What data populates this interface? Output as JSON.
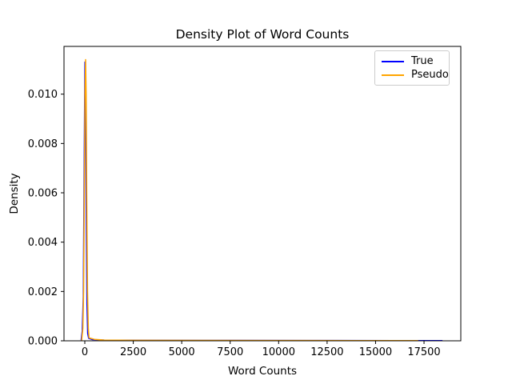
{
  "chart_data": {
    "type": "line",
    "title": "Density Plot of Word Counts",
    "xlabel": "Word Counts",
    "ylabel": "Density",
    "xlim": [
      -1073,
      19397
    ],
    "ylim": [
      0,
      0.011936
    ],
    "x_ticks": [
      0,
      2500,
      5000,
      7500,
      10000,
      12500,
      15000,
      17500
    ],
    "x_tick_labels": [
      "0",
      "2500",
      "5000",
      "7500",
      "10000",
      "12500",
      "15000",
      "17500"
    ],
    "y_ticks": [
      0.0,
      0.002,
      0.004,
      0.006,
      0.008,
      0.01
    ],
    "y_tick_labels": [
      "0.000",
      "0.002",
      "0.004",
      "0.006",
      "0.008",
      "0.010"
    ],
    "grid": false,
    "legend_position": "upper right",
    "legend_entries": [
      "True",
      "Pseudo"
    ],
    "series": [
      {
        "name": "True",
        "color": "#0000ff",
        "peak": {
          "x": 10,
          "density": 0.0113
        },
        "points": [
          [
            -190,
            2e-05
          ],
          [
            -130,
            0.0004
          ],
          [
            -80,
            0.0018
          ],
          [
            -40,
            0.006
          ],
          [
            -10,
            0.0098
          ],
          [
            10,
            0.0113
          ],
          [
            40,
            0.0098
          ],
          [
            70,
            0.0055
          ],
          [
            110,
            0.0015
          ],
          [
            150,
            0.0003
          ],
          [
            200,
            0.0001
          ],
          [
            400,
            5e-05
          ],
          [
            1000,
            3e-05
          ],
          [
            3000,
            2e-05
          ],
          [
            8000,
            1.5e-05
          ],
          [
            13000,
            1.2e-05
          ],
          [
            16000,
            1e-05
          ],
          [
            17500,
            1e-05
          ],
          [
            18450,
            1e-05
          ]
        ]
      },
      {
        "name": "Pseudo",
        "color": "#ffa500",
        "peak": {
          "x": 40,
          "density": 0.0114
        },
        "points": [
          [
            -160,
            2e-05
          ],
          [
            -100,
            0.0005
          ],
          [
            -60,
            0.002
          ],
          [
            -20,
            0.0065
          ],
          [
            10,
            0.01
          ],
          [
            40,
            0.0114
          ],
          [
            70,
            0.01
          ],
          [
            100,
            0.006
          ],
          [
            140,
            0.002
          ],
          [
            180,
            0.0005
          ],
          [
            220,
            0.00012
          ],
          [
            300,
            0.0001
          ],
          [
            500,
            6e-05
          ],
          [
            1000,
            3e-05
          ],
          [
            2500,
            2e-05
          ],
          [
            6000,
            1.5e-05
          ],
          [
            10000,
            1.2e-05
          ],
          [
            14000,
            1e-05
          ],
          [
            16000,
            1e-05
          ],
          [
            17200,
            1e-05
          ]
        ]
      }
    ]
  },
  "colors": {
    "axes": "#000000",
    "text": "#000000",
    "legend_border": "#cccccc",
    "background": "#ffffff",
    "true_line": "#0000ff",
    "pseudo_line": "#ffa500"
  }
}
